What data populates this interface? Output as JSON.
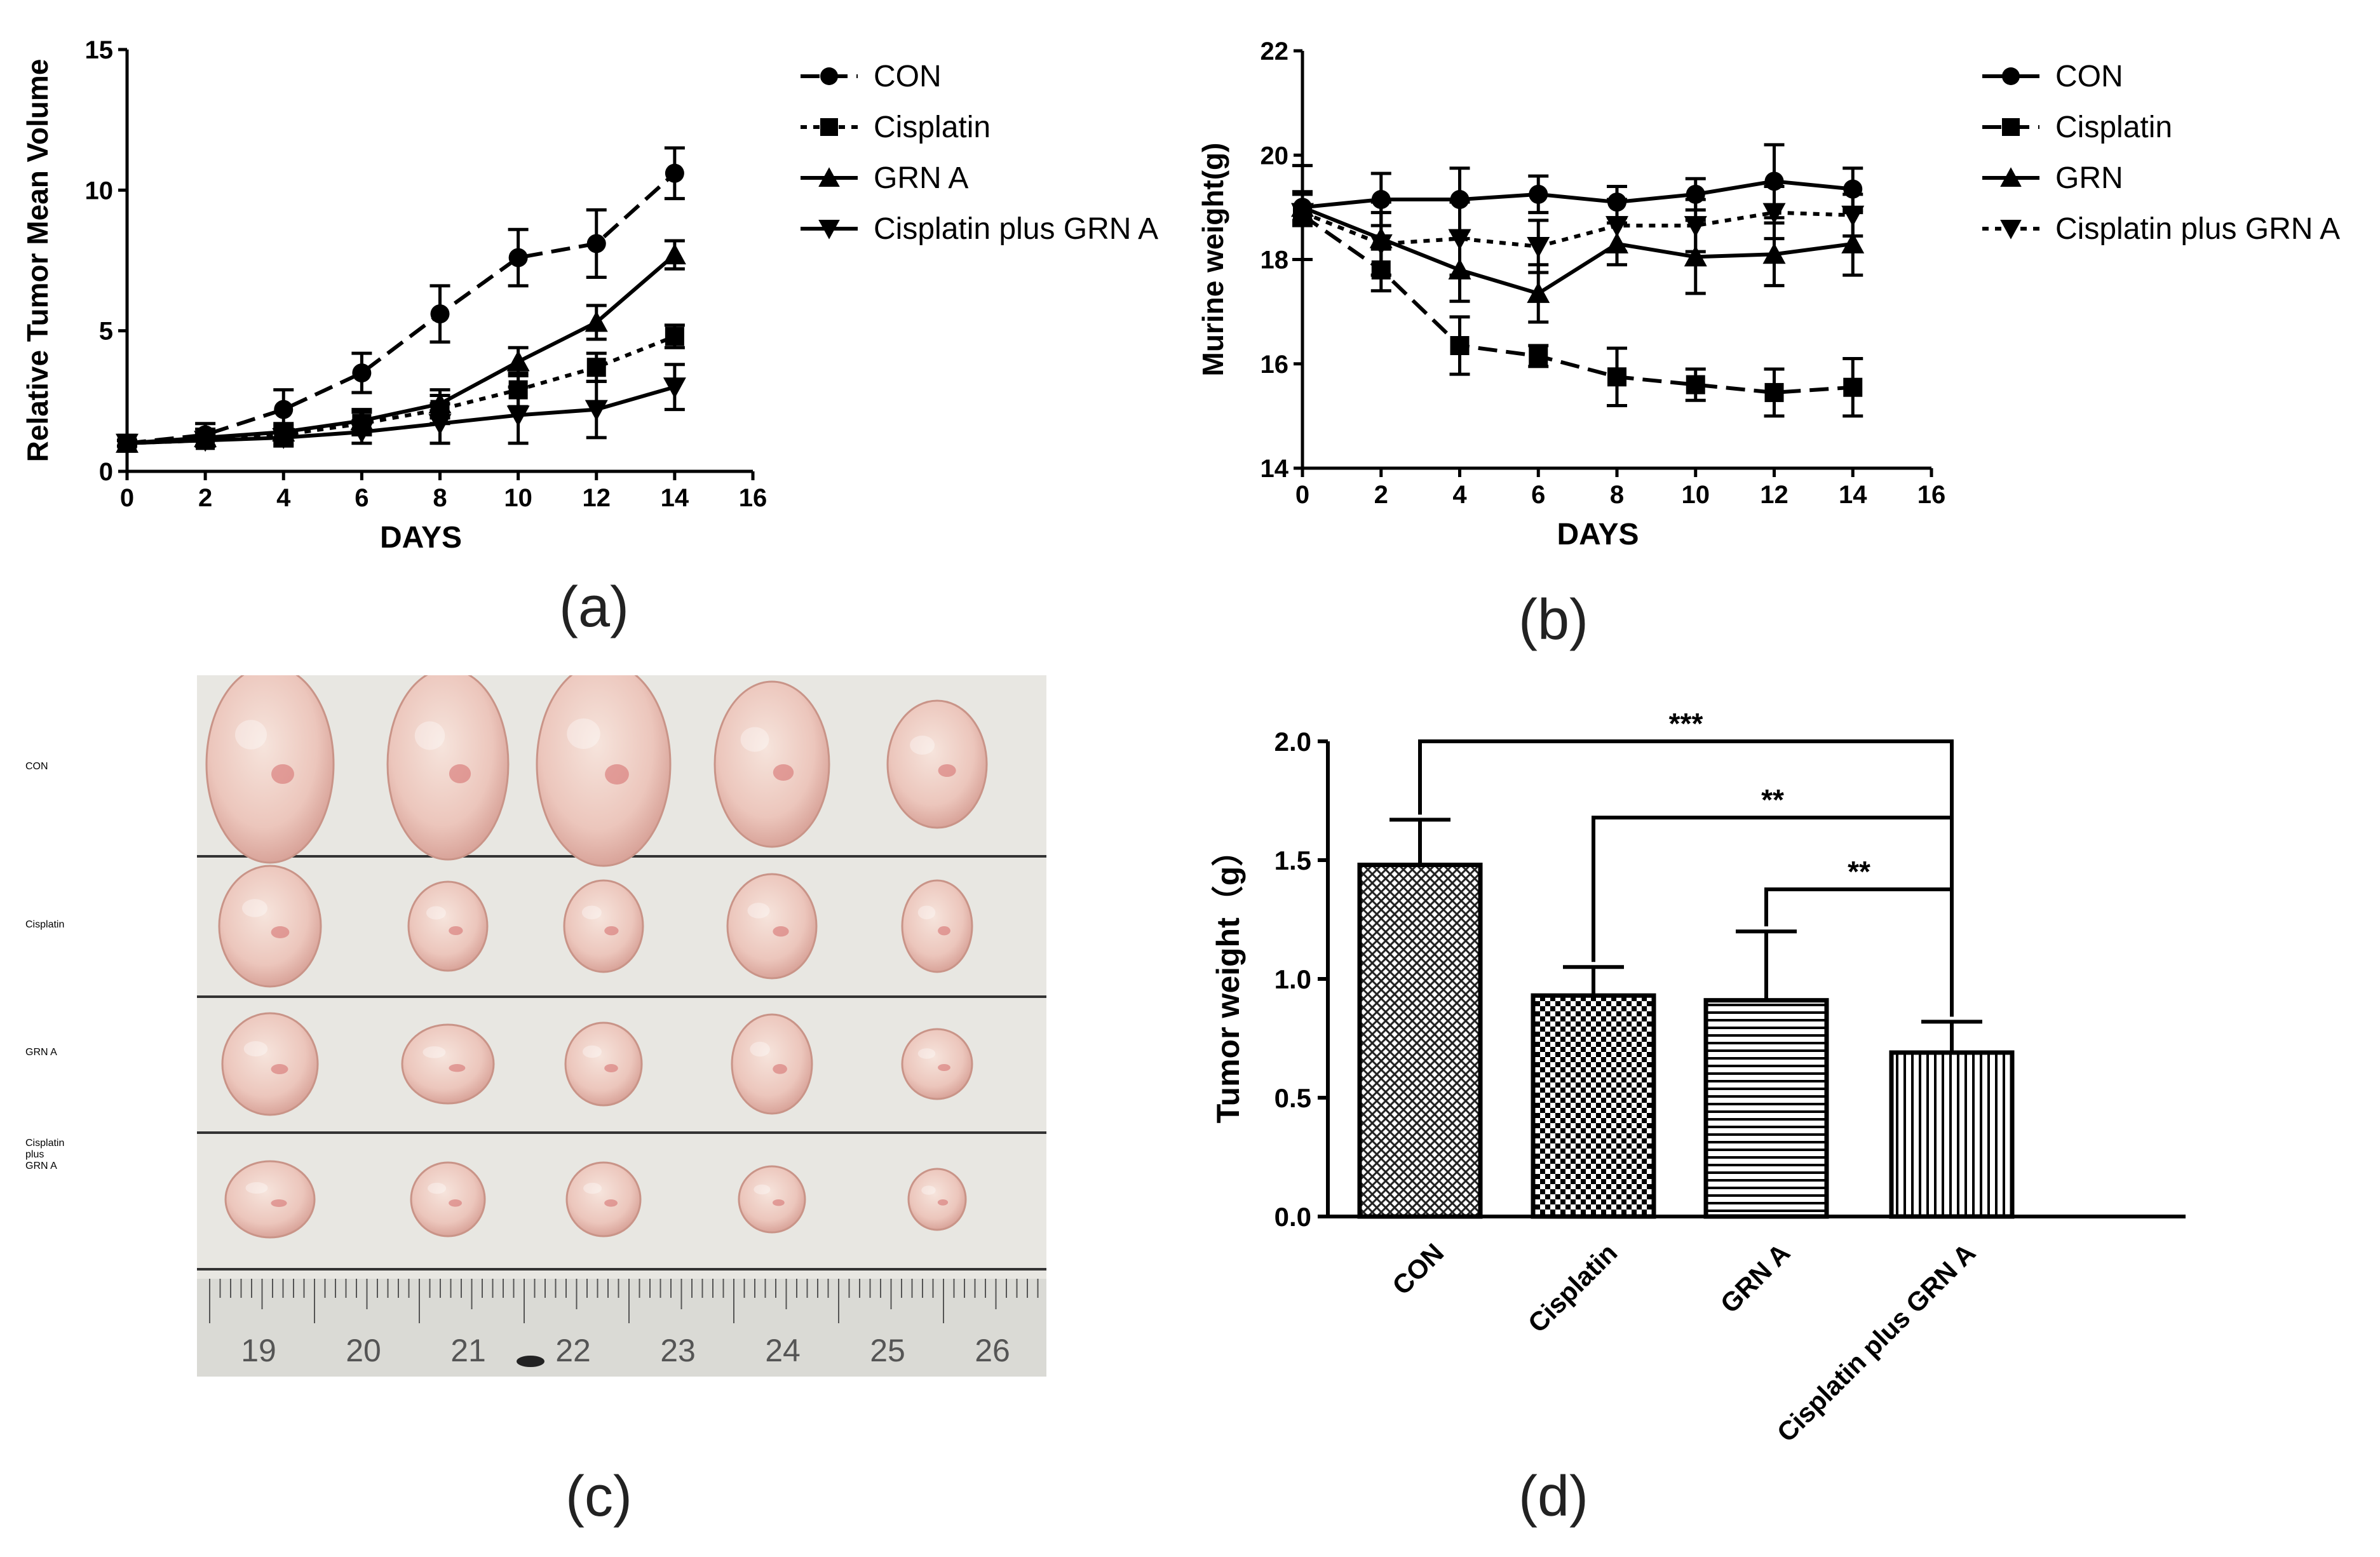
{
  "panel_labels": {
    "a": "(a)",
    "b": "(b)",
    "c": "(c)",
    "d": "(d)"
  },
  "chart_data": [
    {
      "id": "a",
      "type": "line",
      "title": "",
      "xlabel": "DAYS",
      "ylabel": "Relative Tumor Mean Volume",
      "xlim": [
        0,
        16
      ],
      "ylim": [
        0,
        15
      ],
      "xticks": [
        0,
        2,
        4,
        6,
        8,
        10,
        12,
        14,
        16
      ],
      "yticks": [
        0,
        5,
        10,
        15
      ],
      "legend_position": "right",
      "x": [
        0,
        2,
        4,
        6,
        8,
        10,
        12,
        14
      ],
      "series": [
        {
          "name": "CON",
          "marker": "circle",
          "dash": "dashed",
          "values": [
            1.0,
            1.3,
            2.2,
            3.5,
            5.6,
            7.6,
            8.1,
            10.6
          ],
          "errors": [
            0.1,
            0.4,
            0.7,
            0.7,
            1.0,
            1.0,
            1.2,
            0.9
          ]
        },
        {
          "name": "Cisplatin",
          "marker": "square",
          "dash": "dotted",
          "values": [
            1.0,
            1.1,
            1.3,
            1.7,
            2.2,
            2.9,
            3.7,
            4.8
          ],
          "errors": [
            0.1,
            0.2,
            0.3,
            0.4,
            0.5,
            0.6,
            0.5,
            0.4
          ]
        },
        {
          "name": "GRN A",
          "marker": "triangle-up",
          "dash": "solid",
          "values": [
            1.0,
            1.2,
            1.4,
            1.8,
            2.4,
            3.9,
            5.3,
            7.7
          ],
          "errors": [
            0.1,
            0.3,
            0.3,
            0.4,
            0.5,
            0.5,
            0.6,
            0.5
          ]
        },
        {
          "name": "Cisplatin plus GRN A",
          "marker": "triangle-down",
          "dash": "solid",
          "values": [
            1.0,
            1.1,
            1.2,
            1.4,
            1.7,
            2.0,
            2.2,
            3.0
          ],
          "errors": [
            0.1,
            0.2,
            0.3,
            0.4,
            0.7,
            1.0,
            1.0,
            0.8
          ]
        }
      ]
    },
    {
      "id": "b",
      "type": "line",
      "title": "",
      "xlabel": "DAYS",
      "ylabel": "Murine weight(g)",
      "xlim": [
        0,
        16
      ],
      "ylim": [
        14,
        22
      ],
      "xticks": [
        0,
        2,
        4,
        6,
        8,
        10,
        12,
        14,
        16
      ],
      "yticks": [
        14,
        16,
        18,
        20,
        22
      ],
      "legend_position": "right",
      "x": [
        0,
        2,
        4,
        6,
        8,
        10,
        12,
        14
      ],
      "series": [
        {
          "name": "CON",
          "marker": "circle",
          "dash": "solid",
          "values": [
            19.0,
            19.15,
            19.15,
            19.25,
            19.1,
            19.25,
            19.5,
            19.35
          ],
          "errors": [
            0.25,
            0.5,
            0.6,
            0.35,
            0.3,
            0.3,
            0.7,
            0.4
          ]
        },
        {
          "name": "Cisplatin",
          "marker": "square",
          "dash": "dashed",
          "values": [
            18.85,
            17.8,
            16.35,
            16.15,
            15.75,
            15.6,
            15.45,
            15.55
          ],
          "errors": [
            0.2,
            0.4,
            0.55,
            0.2,
            0.55,
            0.3,
            0.45,
            0.55
          ]
        },
        {
          "name": "GRN",
          "marker": "triangle-up",
          "dash": "solid",
          "values": [
            19.0,
            18.4,
            17.8,
            17.35,
            18.3,
            18.05,
            18.1,
            18.3
          ],
          "errors": [
            0.3,
            0.7,
            0.6,
            0.55,
            0.4,
            0.7,
            0.6,
            0.6
          ]
        },
        {
          "name": "Cisplatin plus GRN A",
          "marker": "triangle-down",
          "dash": "dotted",
          "values": [
            18.9,
            18.3,
            18.4,
            18.25,
            18.65,
            18.65,
            18.9,
            18.85
          ],
          "errors": [
            0.9,
            0.6,
            0.7,
            0.5,
            0.5,
            0.5,
            0.5,
            0.4
          ]
        }
      ]
    },
    {
      "id": "d",
      "type": "bar",
      "title": "",
      "xlabel": "",
      "ylabel": "Tumor weight（g）",
      "ylim": [
        0,
        2.0
      ],
      "yticks": [
        "0.0",
        "0.5",
        "1.0",
        "1.5",
        "2.0"
      ],
      "categories": [
        "CON",
        "Cisplatin",
        "GRN A",
        "Cisplatin plus GRN A"
      ],
      "values": [
        1.48,
        0.93,
        0.91,
        0.69
      ],
      "errors": [
        0.19,
        0.12,
        0.29,
        0.13
      ],
      "patterns": [
        "crosshatch",
        "checker",
        "horizontal-lines",
        "vertical-lines"
      ],
      "significance": [
        {
          "from": "CON",
          "to": "Cisplatin plus GRN A",
          "label": "***"
        },
        {
          "from": "Cisplatin",
          "to": "Cisplatin plus GRN A",
          "label": "**"
        },
        {
          "from": "GRN A",
          "to": "Cisplatin plus GRN A",
          "label": "**"
        }
      ]
    }
  ],
  "photo": {
    "row_labels": [
      "CON",
      "Cisplatin",
      "GRN A",
      "Cisplatin plus GRN A"
    ],
    "row_label_lines": [
      [
        "CON"
      ],
      [
        "Cisplatin"
      ],
      [
        "GRN A"
      ],
      [
        "Cisplatin",
        "plus",
        "GRN A"
      ]
    ],
    "ruler_numbers": [
      "19",
      "20",
      "21",
      "22",
      "23",
      "24",
      "25",
      "26"
    ]
  }
}
